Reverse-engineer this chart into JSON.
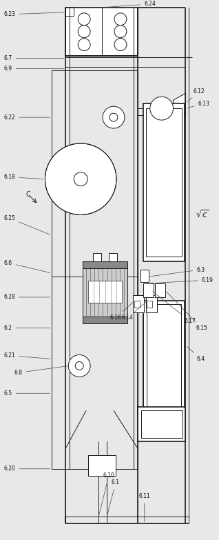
{
  "fig_width": 3.18,
  "fig_height": 7.83,
  "dpi": 100,
  "bg_color": "#e8e8e8",
  "line_color": "#1a1a1a",
  "lw": 0.7,
  "lw2": 1.2,
  "xlim": [
    0,
    318
  ],
  "ylim": [
    0,
    783
  ]
}
